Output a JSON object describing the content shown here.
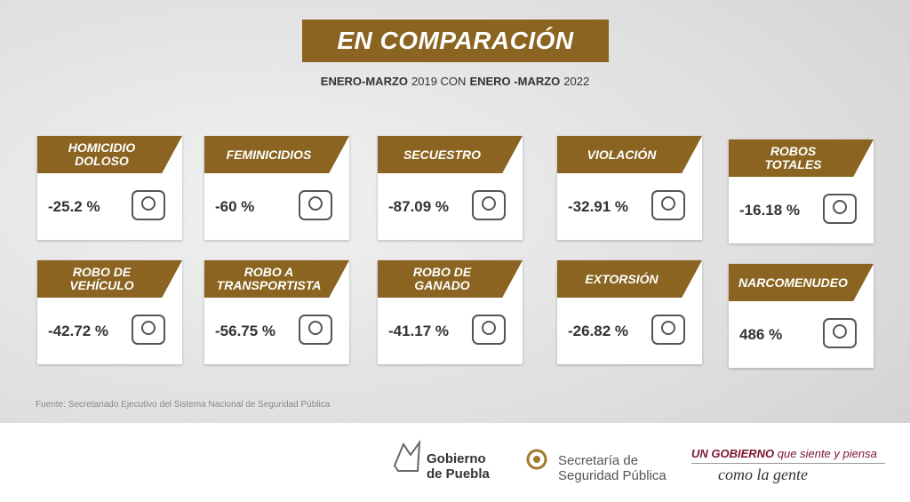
{
  "header": {
    "title": "EN COMPARACIÓN",
    "subtitle": [
      "ENERO-MARZO",
      "2019 CON",
      "ENERO -MARZO",
      "2022"
    ]
  },
  "cards": [
    {
      "label": [
        "HOMICIDIO",
        "DOLOSO"
      ],
      "value": "-25.2 %"
    },
    {
      "label": [
        "FEMINICIDIOS"
      ],
      "value": "-60 %"
    },
    {
      "label": [
        "SECUESTRO"
      ],
      "value": "-87.09 %"
    },
    {
      "label": [
        "VIOLACIÓN"
      ],
      "value": "-32.91 %"
    },
    {
      "label": [
        "ROBOS",
        "TOTALES"
      ],
      "value": "-16.18 %"
    },
    {
      "label": [
        "ROBO DE",
        "VEHÍCULO"
      ],
      "value": "-42.72 %"
    },
    {
      "label": [
        "ROBO A",
        "TRANSPORTISTA"
      ],
      "value": "-56.75 %"
    },
    {
      "label": [
        "ROBO DE",
        "GANADO"
      ],
      "value": "-41.17 %"
    },
    {
      "label": [
        "EXTORSIÓN"
      ],
      "value": "-26.82 %"
    },
    {
      "label": [
        "NARCOMENUDEO"
      ],
      "value": "486 %"
    }
  ],
  "source": "Fuente: Secretariado Ejecutivo del  Sistema Nacional de Seguridad Pública",
  "footer": {
    "gobierno": [
      "Gobierno",
      "de Puebla"
    ],
    "secretaria": [
      "Secretaría de",
      "Seguridad Pública"
    ],
    "slogan": [
      "UN GOBIERNO",
      "que siente y piensa",
      "como la gente"
    ]
  }
}
